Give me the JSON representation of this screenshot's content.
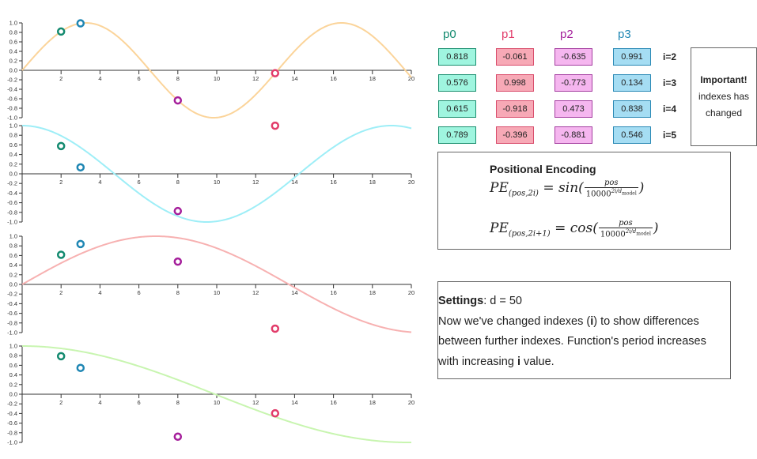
{
  "colors": {
    "curves": [
      "#fbd49a",
      "#9eeef7",
      "#f7b1b1",
      "#c8f5b0"
    ],
    "p0": "#138a6f",
    "p1": "#e23c6a",
    "p2": "#a51f9b",
    "p3": "#1e86b3",
    "cell_fill": [
      "#9ff5df",
      "#f7a9b6",
      "#f5b6ef",
      "#a5ddf3"
    ],
    "cell_border": [
      "#1b8f6f",
      "#d94c6b",
      "#a43ea0",
      "#2a89b5"
    ]
  },
  "chart_data": {
    "type": "line",
    "x_ticks": [
      2,
      4,
      6,
      8,
      10,
      12,
      14,
      16,
      18,
      20
    ],
    "y_ticks": [
      "1.0",
      "0.8",
      "0.6",
      "0.4",
      "0.2",
      "0.0",
      "-0.2",
      "-0.4",
      "-0.6",
      "-0.8",
      "-1.0"
    ],
    "xlim": [
      0,
      20
    ],
    "ylim": [
      -1,
      1
    ],
    "points_x": [
      2,
      3,
      8,
      13
    ],
    "series": [
      {
        "i": 2,
        "func": "sin",
        "values": [
          0.818,
          0.991,
          -0.635,
          -0.061
        ]
      },
      {
        "i": 3,
        "func": "cos",
        "values": [
          0.576,
          0.134,
          -0.773,
          0.998
        ]
      },
      {
        "i": 4,
        "func": "sin",
        "values": [
          0.615,
          0.838,
          0.473,
          -0.918
        ]
      },
      {
        "i": 5,
        "func": "cos",
        "values": [
          0.789,
          0.546,
          -0.881,
          -0.396
        ]
      }
    ]
  },
  "table": {
    "headers": [
      "p0",
      "p1",
      "p2",
      "p3"
    ],
    "rows": [
      {
        "label": "i=2",
        "values": [
          "0.818",
          "-0.061",
          "-0.635",
          "0.991"
        ]
      },
      {
        "label": "i=3",
        "values": [
          "0.576",
          "0.998",
          "-0.773",
          "0.134"
        ]
      },
      {
        "label": "i=4",
        "values": [
          "0.615",
          "-0.918",
          "0.473",
          "0.838"
        ]
      },
      {
        "label": "i=5",
        "values": [
          "0.789",
          "-0.396",
          "-0.881",
          "0.546"
        ]
      }
    ]
  },
  "important": {
    "title": "Important!",
    "line1": "indexes has",
    "line2": "changed"
  },
  "pe": {
    "title": "Positional Encoding"
  },
  "settings": {
    "label": "Settings",
    "value": ": d = 50",
    "line1_a": "Now we've changed indexes (",
    "line1_b": "i",
    "line1_c": ") to show differences",
    "line2": "between further indexes. Function's period increases",
    "line3_a": "with increasing ",
    "line3_b": "i",
    "line3_c": " value."
  }
}
